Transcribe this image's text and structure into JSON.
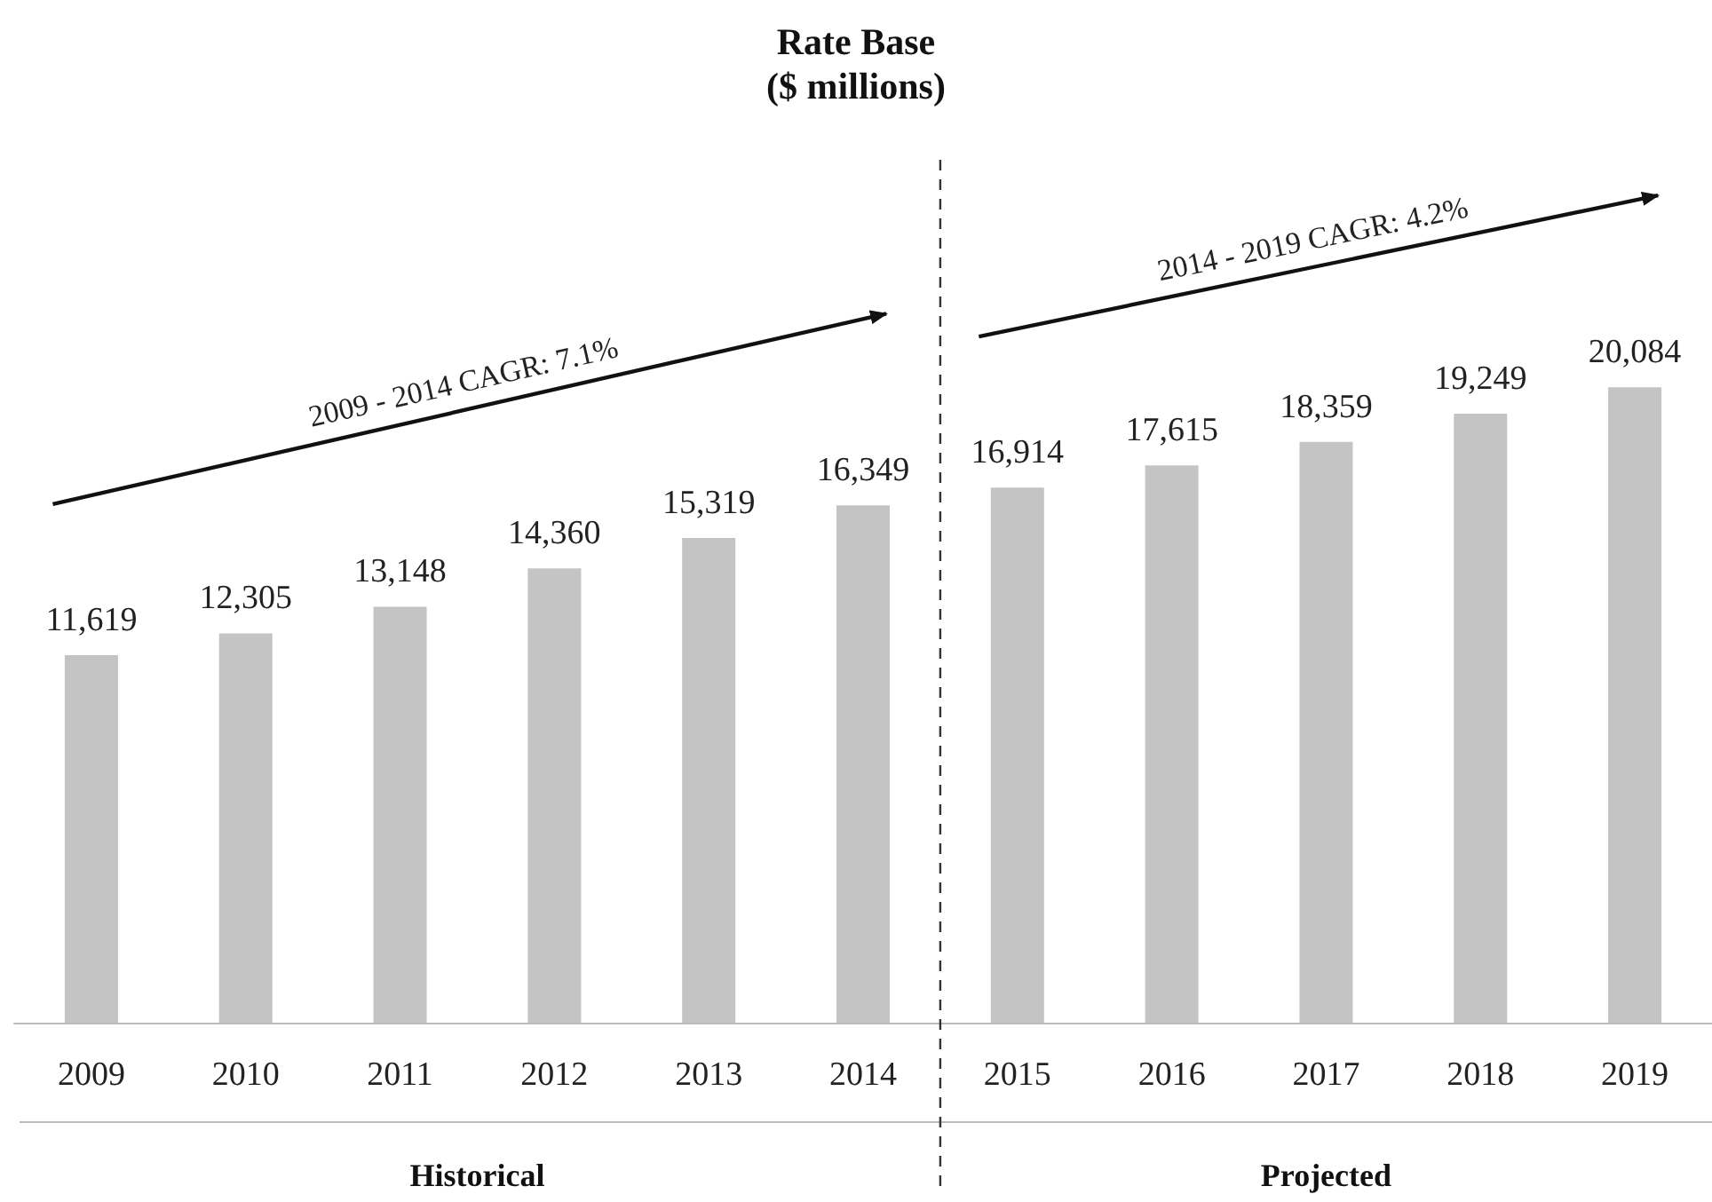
{
  "chart_data": {
    "type": "bar",
    "title": "Rate Base",
    "subtitle": "($ millions)",
    "categories": [
      "2009",
      "2010",
      "2011",
      "2012",
      "2013",
      "2014",
      "2015",
      "2016",
      "2017",
      "2018",
      "2019"
    ],
    "values": [
      11619,
      12305,
      13148,
      14360,
      15319,
      16349,
      16914,
      17615,
      18359,
      19249,
      20084
    ],
    "value_labels": [
      "11,619",
      "12,305",
      "13,148",
      "14,360",
      "15,319",
      "16,349",
      "16,914",
      "17,615",
      "18,359",
      "19,249",
      "20,084"
    ],
    "color": "#c4c4c4",
    "annotations": [
      "2009 - 2014 CAGR: 7.1%",
      "2014 - 2019 CAGR: 4.2%",
      "Historical",
      "Projected"
    ]
  }
}
